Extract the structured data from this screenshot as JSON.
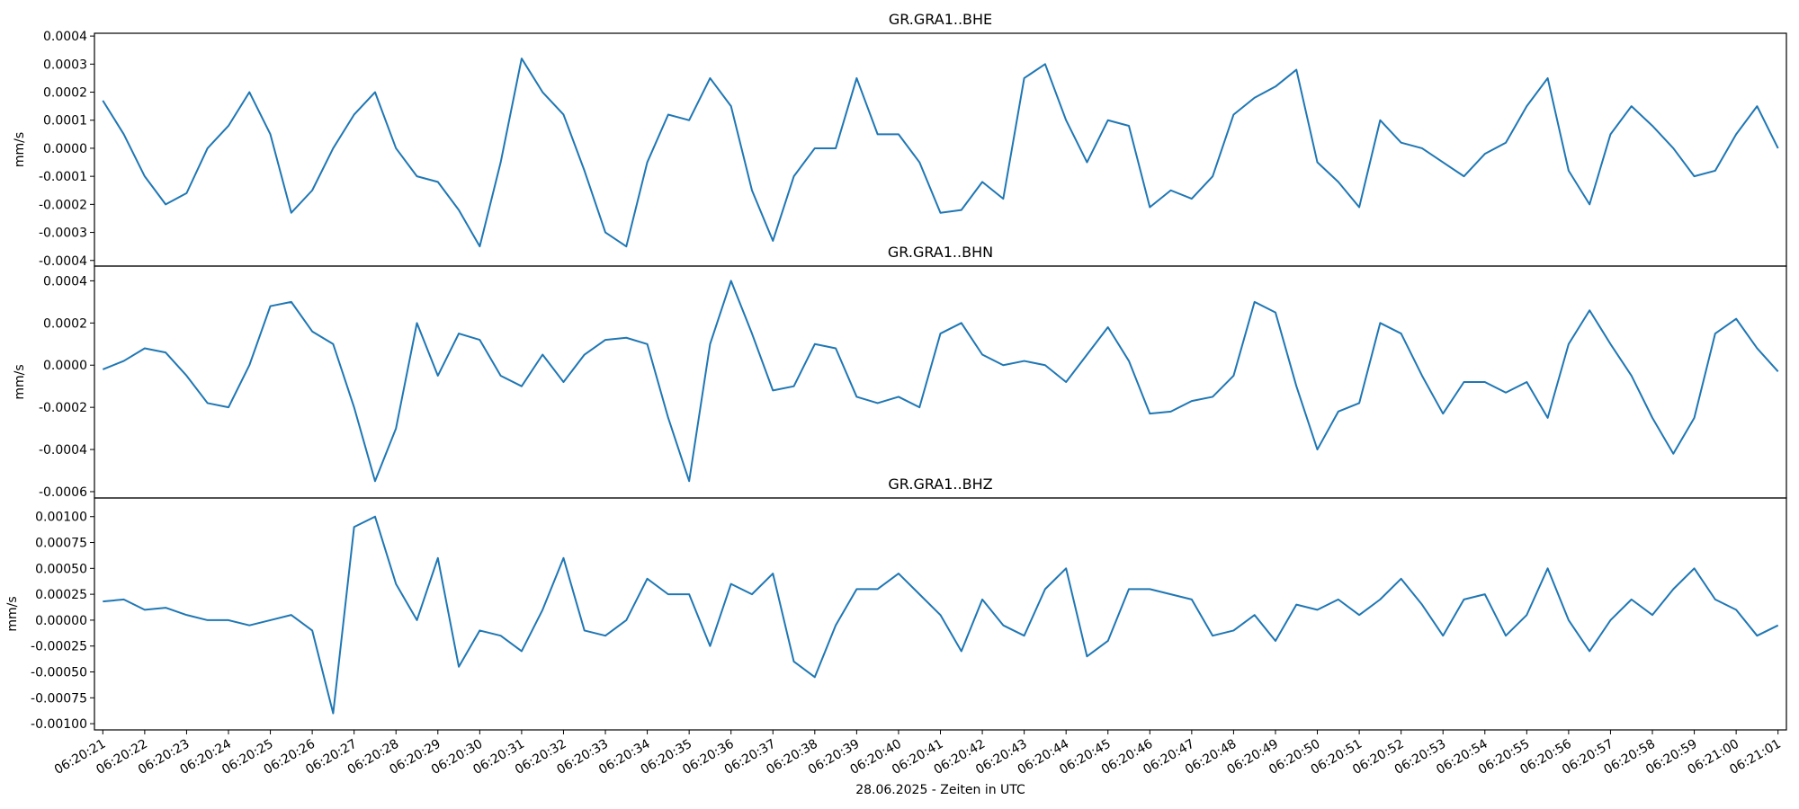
{
  "chart_data": [
    {
      "type": "line",
      "title": "GR.GRA1..BHE",
      "ylabel": "mm/s",
      "color": "#1f77b4",
      "xlim": [
        "06:20:20.8",
        "06:21:01.2"
      ],
      "ylim": [
        -0.00042,
        0.00041
      ],
      "yticks": [
        {
          "value": -0.0004,
          "label": "-0.0004"
        },
        {
          "value": -0.0003,
          "label": "-0.0003"
        },
        {
          "value": -0.0002,
          "label": "-0.0002"
        },
        {
          "value": -0.0001,
          "label": "-0.0001"
        },
        {
          "value": 0,
          "label": "0.0000"
        },
        {
          "value": 0.0001,
          "label": "0.0001"
        },
        {
          "value": 0.0002,
          "label": "0.0002"
        },
        {
          "value": 0.0003,
          "label": "0.0003"
        },
        {
          "value": 0.0004,
          "label": "0.0004"
        }
      ],
      "x": [
        "06:20:21.0",
        "06:20:21.5",
        "06:20:22.0",
        "06:20:22.5",
        "06:20:23.0",
        "06:20:23.5",
        "06:20:24.0",
        "06:20:24.5",
        "06:20:25.0",
        "06:20:25.5",
        "06:20:26.0",
        "06:20:26.5",
        "06:20:27.0",
        "06:20:27.5",
        "06:20:28.0",
        "06:20:28.5",
        "06:20:29.0",
        "06:20:29.5",
        "06:20:30.0",
        "06:20:30.5",
        "06:20:31.0",
        "06:20:31.5",
        "06:20:32.0",
        "06:20:32.5",
        "06:20:33.0",
        "06:20:33.5",
        "06:20:34.0",
        "06:20:34.5",
        "06:20:35.0",
        "06:20:35.5",
        "06:20:36.0",
        "06:20:36.5",
        "06:20:37.0",
        "06:20:37.5",
        "06:20:38.0",
        "06:20:38.5",
        "06:20:39.0",
        "06:20:39.5",
        "06:20:40.0",
        "06:20:40.5",
        "06:20:41.0",
        "06:20:41.5",
        "06:20:42.0",
        "06:20:42.5",
        "06:20:43.0",
        "06:20:43.5",
        "06:20:44.0",
        "06:20:44.5",
        "06:20:45.0",
        "06:20:45.5",
        "06:20:46.0",
        "06:20:46.5",
        "06:20:47.0",
        "06:20:47.5",
        "06:20:48.0",
        "06:20:48.5",
        "06:20:49.0",
        "06:20:49.5",
        "06:20:50.0",
        "06:20:50.5",
        "06:20:51.0",
        "06:20:51.5",
        "06:20:52.0",
        "06:20:52.5",
        "06:20:53.0",
        "06:20:53.5",
        "06:20:54.0",
        "06:20:54.5",
        "06:20:55.0",
        "06:20:55.5",
        "06:20:56.0",
        "06:20:56.5",
        "06:20:57.0",
        "06:20:57.5",
        "06:20:58.0",
        "06:20:58.5",
        "06:20:59.0",
        "06:20:59.5",
        "06:21:00.0",
        "06:21:00.5",
        "06:21:01.0"
      ],
      "values": [
        0.00017,
        5e-05,
        -0.0001,
        -0.0002,
        -0.00016,
        0,
        8e-05,
        0.0002,
        5e-05,
        -0.00023,
        -0.00015,
        0,
        0.00012,
        0.0002,
        0,
        -0.0001,
        -0.00012,
        -0.00022,
        -0.00035,
        -5e-05,
        0.00032,
        0.0002,
        0.00012,
        -8e-05,
        -0.0003,
        -0.00035,
        -5e-05,
        0.00012,
        0.0001,
        0.00025,
        0.00015,
        -0.00015,
        -0.00033,
        -0.0001,
        0,
        0,
        0.00025,
        5e-05,
        5e-05,
        -5e-05,
        -0.00023,
        -0.00022,
        -0.00012,
        -0.00018,
        0.00025,
        0.0003,
        0.0001,
        -5e-05,
        0.0001,
        8e-05,
        -0.00021,
        -0.00015,
        -0.00018,
        -0.0001,
        0.00012,
        0.00018,
        0.00022,
        0.00028,
        -5e-05,
        -0.00012,
        -0.00021,
        0.0001,
        2e-05,
        0,
        -5e-05,
        -0.0001,
        -2e-05,
        2e-05,
        0.00015,
        0.00025,
        -8e-05,
        -0.0002,
        5e-05,
        0.00015,
        8e-05,
        0,
        -0.0001,
        -8e-05,
        5e-05,
        0.00015,
        0
      ]
    },
    {
      "type": "line",
      "title": "GR.GRA1..BHN",
      "ylabel": "mm/s",
      "color": "#1f77b4",
      "xlim": [
        "06:20:20.8",
        "06:21:01.2"
      ],
      "ylim": [
        -0.00063,
        0.00047
      ],
      "yticks": [
        {
          "value": -0.0006,
          "label": "-0.0006"
        },
        {
          "value": -0.0004,
          "label": "-0.0004"
        },
        {
          "value": -0.0002,
          "label": "-0.0002"
        },
        {
          "value": 0,
          "label": "0.0000"
        },
        {
          "value": 0.0002,
          "label": "0.0002"
        },
        {
          "value": 0.0004,
          "label": "0.0004"
        }
      ],
      "x": [
        "06:20:21.0",
        "06:20:21.5",
        "06:20:22.0",
        "06:20:22.5",
        "06:20:23.0",
        "06:20:23.5",
        "06:20:24.0",
        "06:20:24.5",
        "06:20:25.0",
        "06:20:25.5",
        "06:20:26.0",
        "06:20:26.5",
        "06:20:27.0",
        "06:20:27.5",
        "06:20:28.0",
        "06:20:28.5",
        "06:20:29.0",
        "06:20:29.5",
        "06:20:30.0",
        "06:20:30.5",
        "06:20:31.0",
        "06:20:31.5",
        "06:20:32.0",
        "06:20:32.5",
        "06:20:33.0",
        "06:20:33.5",
        "06:20:34.0",
        "06:20:34.5",
        "06:20:35.0",
        "06:20:35.5",
        "06:20:36.0",
        "06:20:36.5",
        "06:20:37.0",
        "06:20:37.5",
        "06:20:38.0",
        "06:20:38.5",
        "06:20:39.0",
        "06:20:39.5",
        "06:20:40.0",
        "06:20:40.5",
        "06:20:41.0",
        "06:20:41.5",
        "06:20:42.0",
        "06:20:42.5",
        "06:20:43.0",
        "06:20:43.5",
        "06:20:44.0",
        "06:20:44.5",
        "06:20:45.0",
        "06:20:45.5",
        "06:20:46.0",
        "06:20:46.5",
        "06:20:47.0",
        "06:20:47.5",
        "06:20:48.0",
        "06:20:48.5",
        "06:20:49.0",
        "06:20:49.5",
        "06:20:50.0",
        "06:20:50.5",
        "06:20:51.0",
        "06:20:51.5",
        "06:20:52.0",
        "06:20:52.5",
        "06:20:53.0",
        "06:20:53.5",
        "06:20:54.0",
        "06:20:54.5",
        "06:20:55.0",
        "06:20:55.5",
        "06:20:56.0",
        "06:20:56.5",
        "06:20:57.0",
        "06:20:57.5",
        "06:20:58.0",
        "06:20:58.5",
        "06:20:59.0",
        "06:20:59.5",
        "06:21:00.0",
        "06:21:00.5",
        "06:21:01.0"
      ],
      "values": [
        -2e-05,
        2e-05,
        8e-05,
        6e-05,
        -5e-05,
        -0.00018,
        -0.0002,
        0,
        0.00028,
        0.0003,
        0.00016,
        0.0001,
        -0.0002,
        -0.00055,
        -0.0003,
        0.0002,
        -5e-05,
        0.00015,
        0.00012,
        -5e-05,
        -0.0001,
        5e-05,
        -8e-05,
        5e-05,
        0.00012,
        0.00013,
        0.0001,
        -0.00025,
        -0.00055,
        0.0001,
        0.0004,
        0.00015,
        -0.00012,
        -0.0001,
        0.0001,
        8e-05,
        -0.00015,
        -0.00018,
        -0.00015,
        -0.0002,
        0.00015,
        0.0002,
        5e-05,
        0,
        2e-05,
        0,
        -8e-05,
        5e-05,
        0.00018,
        2e-05,
        -0.00023,
        -0.00022,
        -0.00017,
        -0.00015,
        -5e-05,
        0.0003,
        0.00025,
        -0.0001,
        -0.0004,
        -0.00022,
        -0.00018,
        0.0002,
        0.00015,
        -5e-05,
        -0.00023,
        -8e-05,
        -8e-05,
        -0.00013,
        -8e-05,
        -0.00025,
        0.0001,
        0.00026,
        0.0001,
        -5e-05,
        -0.00025,
        -0.00042,
        -0.00025,
        0.00015,
        0.00022,
        8e-05,
        -3e-05
      ]
    },
    {
      "type": "line",
      "title": "GR.GRA1..BHZ",
      "ylabel": "mm/s",
      "xlabel": "28.06.2025 - Zeiten in UTC",
      "color": "#1f77b4",
      "xlim": [
        "06:20:20.8",
        "06:21:01.2"
      ],
      "ylim": [
        -0.00106,
        0.00118
      ],
      "yticks": [
        {
          "value": -0.001,
          "label": "-0.00100"
        },
        {
          "value": -0.00075,
          "label": "-0.00075"
        },
        {
          "value": -0.0005,
          "label": "-0.00050"
        },
        {
          "value": -0.00025,
          "label": "-0.00025"
        },
        {
          "value": 0,
          "label": "0.00000"
        },
        {
          "value": 0.00025,
          "label": "0.00025"
        },
        {
          "value": 0.0005,
          "label": "0.00050"
        },
        {
          "value": 0.00075,
          "label": "0.00075"
        },
        {
          "value": 0.001,
          "label": "0.00100"
        }
      ],
      "xticks": [
        "06:20:21",
        "06:20:22",
        "06:20:23",
        "06:20:24",
        "06:20:25",
        "06:20:26",
        "06:20:27",
        "06:20:28",
        "06:20:29",
        "06:20:30",
        "06:20:31",
        "06:20:32",
        "06:20:33",
        "06:20:34",
        "06:20:35",
        "06:20:36",
        "06:20:37",
        "06:20:38",
        "06:20:39",
        "06:20:40",
        "06:20:41",
        "06:20:42",
        "06:20:43",
        "06:20:44",
        "06:20:45",
        "06:20:46",
        "06:20:47",
        "06:20:48",
        "06:20:49",
        "06:20:50",
        "06:20:51",
        "06:20:52",
        "06:20:53",
        "06:20:54",
        "06:20:55",
        "06:20:56",
        "06:20:57",
        "06:20:58",
        "06:20:59",
        "06:21:00",
        "06:21:01"
      ],
      "x": [
        "06:20:21.0",
        "06:20:21.5",
        "06:20:22.0",
        "06:20:22.5",
        "06:20:23.0",
        "06:20:23.5",
        "06:20:24.0",
        "06:20:24.5",
        "06:20:25.0",
        "06:20:25.5",
        "06:20:26.0",
        "06:20:26.5",
        "06:20:27.0",
        "06:20:27.5",
        "06:20:28.0",
        "06:20:28.5",
        "06:20:29.0",
        "06:20:29.5",
        "06:20:30.0",
        "06:20:30.5",
        "06:20:31.0",
        "06:20:31.5",
        "06:20:32.0",
        "06:20:32.5",
        "06:20:33.0",
        "06:20:33.5",
        "06:20:34.0",
        "06:20:34.5",
        "06:20:35.0",
        "06:20:35.5",
        "06:20:36.0",
        "06:20:36.5",
        "06:20:37.0",
        "06:20:37.5",
        "06:20:38.0",
        "06:20:38.5",
        "06:20:39.0",
        "06:20:39.5",
        "06:20:40.0",
        "06:20:40.5",
        "06:20:41.0",
        "06:20:41.5",
        "06:20:42.0",
        "06:20:42.5",
        "06:20:43.0",
        "06:20:43.5",
        "06:20:44.0",
        "06:20:44.5",
        "06:20:45.0",
        "06:20:45.5",
        "06:20:46.0",
        "06:20:46.5",
        "06:20:47.0",
        "06:20:47.5",
        "06:20:48.0",
        "06:20:48.5",
        "06:20:49.0",
        "06:20:49.5",
        "06:20:50.0",
        "06:20:50.5",
        "06:20:51.0",
        "06:20:51.5",
        "06:20:52.0",
        "06:20:52.5",
        "06:20:53.0",
        "06:20:53.5",
        "06:20:54.0",
        "06:20:54.5",
        "06:20:55.0",
        "06:20:55.5",
        "06:20:56.0",
        "06:20:56.5",
        "06:20:57.0",
        "06:20:57.5",
        "06:20:58.0",
        "06:20:58.5",
        "06:20:59.0",
        "06:20:59.5",
        "06:21:00.0",
        "06:21:00.5",
        "06:21:01.0"
      ],
      "values": [
        0.00018,
        0.0002,
        0.0001,
        0.00012,
        5e-05,
        0,
        0,
        -5e-05,
        0,
        5e-05,
        -0.0001,
        -0.0009,
        0.0009,
        0.001,
        0.00035,
        0,
        0.0006,
        -0.00045,
        -0.0001,
        -0.00015,
        -0.0003,
        0.0001,
        0.0006,
        -0.0001,
        -0.00015,
        0,
        0.0004,
        0.00025,
        0.00025,
        -0.00025,
        0.00035,
        0.00025,
        0.00045,
        -0.0004,
        -0.00055,
        -5e-05,
        0.0003,
        0.0003,
        0.00045,
        0.00025,
        5e-05,
        -0.0003,
        0.0002,
        -5e-05,
        -0.00015,
        0.0003,
        0.0005,
        -0.00035,
        -0.0002,
        0.0003,
        0.0003,
        0.00025,
        0.0002,
        -0.00015,
        -0.0001,
        5e-05,
        -0.0002,
        0.00015,
        0.0001,
        0.0002,
        5e-05,
        0.0002,
        0.0004,
        0.00015,
        -0.00015,
        0.0002,
        0.00025,
        -0.00015,
        5e-05,
        0.0005,
        0,
        -0.0003,
        0,
        0.0002,
        5e-05,
        0.0003,
        0.0005,
        0.0002,
        0.0001,
        -0.00015,
        -5e-05
      ]
    }
  ]
}
